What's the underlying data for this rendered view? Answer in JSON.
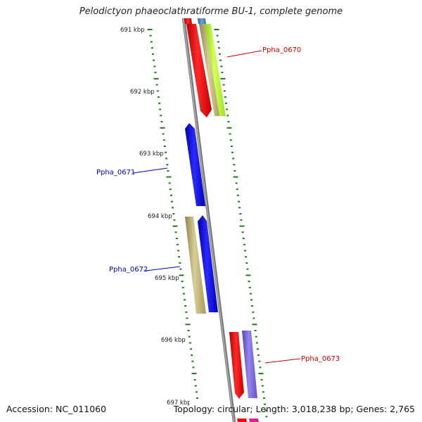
{
  "title": "Pelodictyon phaeoclathratiforme BU-1, complete genome",
  "footer": {
    "accession": "Accession: NC_011060",
    "summary": "Topology: circular; Length: 3,018,238 bp; Genes: 2,765"
  },
  "scale_labels": [
    "691 kbp",
    "692 kbp",
    "693 kbp",
    "694 kbp",
    "695 kbp",
    "696 kbp",
    "697 kbp"
  ],
  "gene_labels": {
    "ppha_0670": "Ppha_0670",
    "ppha_0671": "Ppha_0671",
    "ppha_0672": "Ppha_0672",
    "ppha_0673": "Ppha_0673"
  },
  "colors": {
    "backbone": "#8a8a8a",
    "tick": "#1f7a1f",
    "label_forward": "#cc0000",
    "label_reverse": "#0000cc",
    "red": "#ff0000",
    "blue": "#0000ee",
    "khaki": "#c8bd82",
    "lime": "#bfff3a",
    "lavender": "#7b68d9",
    "magenta": "#e0208f",
    "steel": "#4f86c6"
  }
}
